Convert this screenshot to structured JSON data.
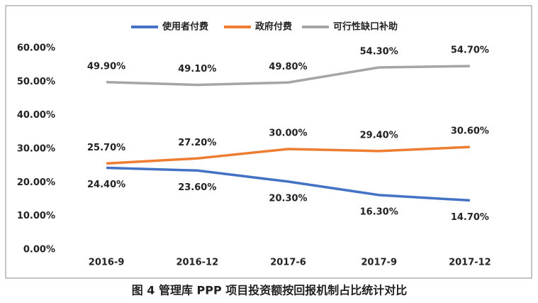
{
  "chart_data": {
    "type": "line",
    "caption": "图 4 管理库 PPP 项目投资额按回报机制占比统计对比",
    "categories": [
      "2016-9",
      "2016-12",
      "2017-6",
      "2017-9",
      "2017-12"
    ],
    "series": [
      {
        "name": "使用者付费",
        "color": "#4472c4",
        "values": [
          24.4,
          23.6,
          20.3,
          16.3,
          14.7
        ],
        "value_labels": [
          "24.40%",
          "23.60%",
          "20.30%",
          "16.30%",
          "14.70%"
        ]
      },
      {
        "name": "政府付费",
        "color": "#ed7d31",
        "values": [
          25.7,
          27.2,
          30.0,
          29.4,
          30.6
        ],
        "value_labels": [
          "25.70%",
          "27.20%",
          "30.00%",
          "29.40%",
          "30.60%"
        ]
      },
      {
        "name": "可行性缺口补助",
        "color": "#a5a5a5",
        "values": [
          49.9,
          49.1,
          49.8,
          54.3,
          54.7
        ],
        "value_labels": [
          "49.90%",
          "49.10%",
          "49.80%",
          "54.30%",
          "54.70%"
        ]
      }
    ],
    "ylim": [
      0,
      60
    ],
    "yticks": [
      {
        "value": 0,
        "label": "0.00%"
      },
      {
        "value": 10,
        "label": "10.00%"
      },
      {
        "value": 20,
        "label": "20.00%"
      },
      {
        "value": 30,
        "label": "30.00%"
      },
      {
        "value": 40,
        "label": "40.00%"
      },
      {
        "value": 50,
        "label": "50.00%"
      },
      {
        "value": 60,
        "label": "60.00%"
      }
    ],
    "grid": false
  }
}
